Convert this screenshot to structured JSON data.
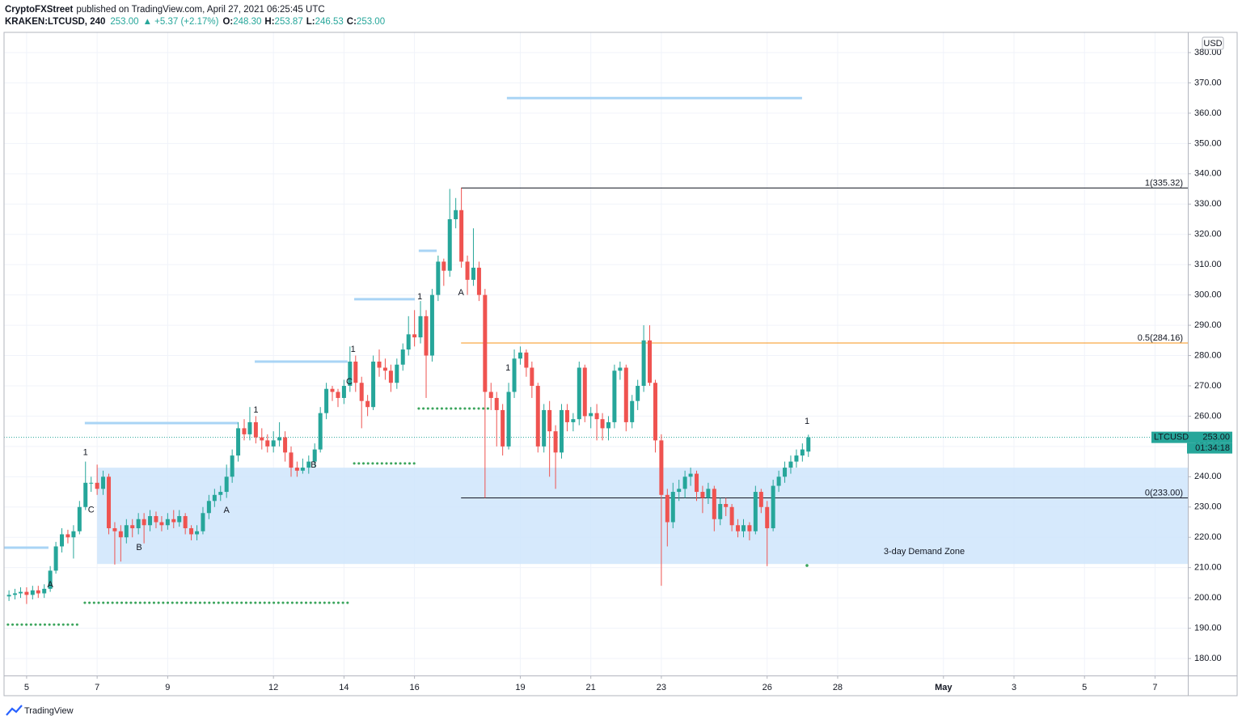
{
  "header": {
    "author": "CryptoFXStreet",
    "published": "published on TradingView.com, April 27, 2021 06:25:45 UTC",
    "last": "253.00",
    "change": "▲ +5.37 (+2.17%)",
    "ohlc": [
      {
        "label": "O:",
        "value": "248.30"
      },
      {
        "label": "H:",
        "value": "253.87"
      },
      {
        "label": "L:",
        "value": "246.53"
      },
      {
        "label": "C:",
        "value": "253.00"
      }
    ]
  },
  "footer": {
    "brand": "TradingView"
  },
  "chart_data": {
    "type": "candlestick",
    "currency": "USD",
    "xlim": [
      4.36,
      37.93
    ],
    "ylim": [
      174.4,
      386.68
    ],
    "xticks": [
      5,
      7,
      9,
      12,
      14,
      16,
      19,
      21,
      23,
      26,
      28,
      {
        "value": 31,
        "label": "May"
      },
      {
        "value": 33,
        "label": "3"
      },
      {
        "value": 35,
        "label": "5"
      },
      {
        "value": 37,
        "label": "7"
      }
    ],
    "yticks": [
      {
        "value": 180,
        "label": "180.00"
      },
      {
        "value": 190,
        "label": "190.00"
      },
      {
        "value": 200,
        "label": "200.00"
      },
      {
        "value": 210,
        "label": "210.00"
      },
      {
        "value": 220,
        "label": "220.00"
      },
      {
        "value": 230,
        "label": "230.00"
      },
      {
        "value": 240,
        "label": "240.00"
      },
      {
        "value": 250,
        "label": "250.00"
      },
      {
        "value": 260,
        "label": "260.00"
      },
      {
        "value": 270,
        "label": "270.00"
      },
      {
        "value": 280,
        "label": "280.00"
      },
      {
        "value": 290,
        "label": "290.00"
      },
      {
        "value": 300,
        "label": "300.00"
      },
      {
        "value": 310,
        "label": "310.00"
      },
      {
        "value": 320,
        "label": "320.00"
      },
      {
        "value": 330,
        "label": "330.00"
      },
      {
        "value": 340,
        "label": "340.00"
      },
      {
        "value": 350,
        "label": "350.00"
      },
      {
        "value": 360,
        "label": "360.00"
      },
      {
        "value": 370,
        "label": "370.00"
      },
      {
        "value": 380,
        "label": "380.00"
      }
    ],
    "grid": true,
    "x": [
      4.5,
      4.67,
      4.83,
      5,
      5.17,
      5.33,
      5.5,
      5.67,
      5.83,
      6,
      6.17,
      6.33,
      6.5,
      6.67,
      6.83,
      7,
      7.17,
      7.33,
      7.5,
      7.67,
      7.83,
      8,
      8.17,
      8.33,
      8.5,
      8.67,
      8.83,
      9,
      9.17,
      9.33,
      9.5,
      9.67,
      9.83,
      10,
      10.17,
      10.33,
      10.5,
      10.67,
      10.83,
      11,
      11.17,
      11.33,
      11.5,
      11.67,
      11.83,
      12,
      12.17,
      12.33,
      12.5,
      12.67,
      12.83,
      13,
      13.17,
      13.33,
      13.5,
      13.67,
      13.83,
      14,
      14.17,
      14.33,
      14.5,
      14.67,
      14.83,
      15,
      15.17,
      15.33,
      15.5,
      15.67,
      15.83,
      16,
      16.17,
      16.33,
      16.5,
      16.67,
      16.83,
      17,
      17.17,
      17.33,
      17.5,
      17.67,
      17.83,
      18,
      18.17,
      18.33,
      18.5,
      18.67,
      18.83,
      19,
      19.17,
      19.33,
      19.5,
      19.67,
      19.83,
      20,
      20.17,
      20.33,
      20.5,
      20.67,
      20.83,
      21,
      21.17,
      21.33,
      21.5,
      21.67,
      21.83,
      22,
      22.17,
      22.33,
      22.5,
      22.67,
      22.83,
      23,
      23.17,
      23.33,
      23.5,
      23.67,
      23.83,
      24,
      24.17,
      24.33,
      24.5,
      24.67,
      24.83,
      25,
      25.17,
      25.33,
      25.5,
      25.67,
      25.83,
      26,
      26.17,
      26.33,
      26.5,
      26.67,
      26.83,
      27,
      27.17
    ],
    "series": [
      {
        "name": "KRAKEN:LTCUSD, 240",
        "up_color": "#26a69a",
        "down_color": "#ef5350",
        "open": [
          200.5,
          201,
          201.5,
          202,
          201,
          202.5,
          201.5,
          203,
          209,
          217,
          221,
          220,
          222,
          230,
          238,
          238,
          236,
          240,
          223,
          222,
          220,
          224,
          223,
          226,
          224,
          227,
          225,
          224,
          226,
          225,
          227,
          223,
          221,
          222,
          228,
          232,
          234,
          235,
          240,
          247,
          256,
          254,
          258,
          253,
          252,
          250,
          252,
          253,
          248,
          243,
          242,
          243,
          245,
          249,
          261,
          269,
          268,
          266,
          270,
          278,
          271,
          265,
          263,
          278,
          276,
          275,
          271,
          277,
          282,
          287,
          286,
          293,
          280,
          300,
          311,
          308,
          325,
          328,
          311,
          305,
          309,
          300,
          268,
          266,
          262,
          250,
          268,
          279,
          281,
          276,
          270,
          250,
          262,
          255,
          248,
          262,
          258,
          259,
          276,
          260,
          261,
          259,
          256,
          258,
          275,
          276,
          258,
          265,
          270,
          285,
          271,
          252,
          234,
          225,
          235,
          236,
          240,
          241,
          235,
          233,
          236,
          226,
          231,
          230,
          224,
          222,
          224,
          222,
          235,
          230,
          223,
          237,
          240,
          243,
          245,
          247,
          248.3
        ],
        "high": [
          202.5,
          203,
          203.5,
          203.5,
          204,
          204,
          204.5,
          210.5,
          218.5,
          223,
          222.5,
          224,
          232,
          245,
          240,
          244,
          242,
          241,
          225,
          224,
          226,
          226,
          228,
          228,
          229,
          228.5,
          227,
          228,
          229,
          229,
          228,
          224,
          224,
          230,
          234,
          236,
          237,
          244,
          249,
          258,
          259,
          263,
          260,
          256,
          254,
          255,
          258,
          255,
          250,
          245,
          246,
          247,
          251,
          263,
          271,
          270,
          269,
          272,
          283,
          280,
          273,
          267,
          280,
          282,
          279,
          277,
          279,
          284,
          293,
          295,
          298,
          295,
          302,
          313,
          312,
          335,
          332,
          335.32,
          313,
          322,
          311,
          302,
          271,
          268,
          264,
          271,
          282,
          283,
          282,
          278,
          271,
          264,
          265,
          257,
          264,
          264,
          261,
          278,
          277,
          263,
          264,
          261,
          260,
          277,
          278,
          277,
          267,
          272,
          290,
          290,
          272,
          254,
          236,
          238,
          239,
          242,
          243,
          242,
          237,
          238,
          237,
          233,
          233,
          231,
          226,
          226,
          225,
          237,
          236,
          232,
          239,
          242,
          245,
          247,
          249,
          251,
          253.87
        ],
        "low": [
          199,
          199.5,
          200,
          198,
          199.5,
          200,
          200,
          202,
          208,
          215,
          218,
          213,
          221,
          229,
          235,
          234,
          234,
          221,
          211,
          212,
          218,
          220,
          221,
          218,
          222,
          223,
          222,
          222.5,
          223,
          223.5,
          221,
          219,
          219,
          221,
          226,
          230,
          232,
          233,
          238,
          245,
          252,
          252,
          251,
          249,
          248,
          248,
          250,
          245,
          240,
          240,
          241,
          241,
          243,
          248,
          259,
          265,
          263,
          264,
          268,
          268,
          256,
          260,
          262,
          273,
          272,
          268,
          269,
          275,
          280,
          283,
          284,
          266,
          278,
          298,
          303,
          306,
          322,
          309,
          300,
          303,
          298,
          233,
          262,
          250,
          247,
          249,
          266,
          277,
          273,
          266,
          248,
          248,
          240,
          236,
          246,
          255,
          255,
          257,
          258,
          256,
          252,
          252,
          252,
          256,
          272,
          255,
          256,
          262,
          268,
          270,
          248,
          204,
          217,
          223,
          232,
          233,
          237,
          232,
          228,
          231,
          222,
          224,
          227,
          222,
          220,
          220,
          219,
          221,
          228,
          210.5,
          222,
          235,
          238,
          241,
          243,
          245,
          246.53
        ],
        "close": [
          201,
          201.5,
          202,
          201,
          202.5,
          201.5,
          203,
          209,
          217,
          221,
          220,
          222,
          230,
          238,
          238,
          236,
          240,
          223,
          222,
          220,
          224,
          223,
          226,
          224,
          227,
          225,
          224,
          226,
          225,
          227,
          223,
          221,
          222,
          228,
          232,
          234,
          235,
          240,
          247,
          256,
          254,
          258,
          253,
          252,
          250,
          252,
          253,
          248,
          243,
          242,
          243,
          245,
          249,
          261,
          269,
          268,
          266,
          270,
          278,
          271,
          265,
          263,
          278,
          276,
          275,
          271,
          277,
          282,
          287,
          286,
          293,
          280,
          300,
          311,
          308,
          325,
          328,
          311,
          305,
          309,
          300,
          268,
          266,
          262,
          250,
          268,
          279,
          281,
          276,
          270,
          250,
          262,
          255,
          248,
          262,
          258,
          259,
          276,
          260,
          261,
          259,
          256,
          258,
          275,
          276,
          258,
          265,
          270,
          285,
          271,
          252,
          234,
          225,
          235,
          236,
          240,
          241,
          235,
          233,
          236,
          226,
          231,
          230,
          224,
          222,
          224,
          222,
          235,
          230,
          223,
          237,
          240,
          243,
          245,
          247,
          249,
          253
        ]
      }
    ],
    "zone": {
      "label": "3-day Demand Zone",
      "top": 243,
      "bottom": 211.2,
      "from": 7.0,
      "color": "#cfe5fb"
    },
    "fib": [
      {
        "label": "1(335.32)",
        "value": 335.32,
        "from": 17.32,
        "color": "#131722"
      },
      {
        "label": "0.5(284.16)",
        "value": 284.16,
        "from": 17.32,
        "color": "#f7931a"
      },
      {
        "label": "0(233.00)",
        "value": 233.0,
        "from": 17.32,
        "color": "#131722"
      }
    ],
    "resistance": {
      "color": "#a9d4f5",
      "lines": [
        {
          "value": 365,
          "from": 18.62,
          "to": 26.99
        },
        {
          "value": 314.6,
          "from": 16.12,
          "to": 16.63
        },
        {
          "value": 298.6,
          "from": 14.29,
          "to": 16.01
        },
        {
          "value": 278.0,
          "from": 11.47,
          "to": 14.1
        },
        {
          "value": 257.7,
          "from": 6.65,
          "to": 11.0
        },
        {
          "value": 216.6,
          "from": 4.36,
          "to": 5.62
        }
      ]
    },
    "support": {
      "color": "#3ba55d",
      "lines": [
        {
          "value": 262.5,
          "from": 16.12,
          "to": 18.12
        },
        {
          "value": 244.4,
          "from": 14.29,
          "to": 16.06
        },
        {
          "value": 198.4,
          "from": 6.65,
          "to": 14.22
        },
        {
          "value": 191.2,
          "from": 4.47,
          "to": 6.54
        }
      ],
      "dots": [
        {
          "value": 210.7,
          "x": 27.13
        }
      ]
    },
    "markers": [
      {
        "label": "1",
        "x": 6.67,
        "y": 248,
        "color": "#ef5350"
      },
      {
        "label": "C",
        "x": 6.83,
        "y": 229,
        "color": "#ab47bc"
      },
      {
        "label": "A",
        "x": 5.67,
        "y": 204.3,
        "color": "#2196f3"
      },
      {
        "label": "B",
        "x": 8.19,
        "y": 216.6,
        "color": "#f7a21b"
      },
      {
        "label": "A",
        "x": 10.67,
        "y": 228.9,
        "color": "#2196f3"
      },
      {
        "label": "1",
        "x": 11.5,
        "y": 262,
        "color": "#ef5350"
      },
      {
        "label": "B",
        "x": 13.14,
        "y": 243.8,
        "color": "#f7a21b"
      },
      {
        "label": "C",
        "x": 14.15,
        "y": 271.3,
        "color": "#2196f3"
      },
      {
        "label": "1",
        "x": 14.26,
        "y": 282,
        "color": "#ef5350"
      },
      {
        "label": "1",
        "x": 16.15,
        "y": 299.4,
        "color": "#ef5350"
      },
      {
        "label": "A",
        "x": 17.32,
        "y": 300.7,
        "color": "#2196f3"
      },
      {
        "label": "1",
        "x": 18.65,
        "y": 275.9,
        "color": "#4caf50"
      },
      {
        "label": "1",
        "x": 27.13,
        "y": 258.2,
        "color": "#ef5350"
      }
    ],
    "last_price": {
      "symbol": "LTCUSD",
      "value": 253,
      "label": "253.00",
      "timer": "01:34:18",
      "color": "#26a69a"
    }
  }
}
